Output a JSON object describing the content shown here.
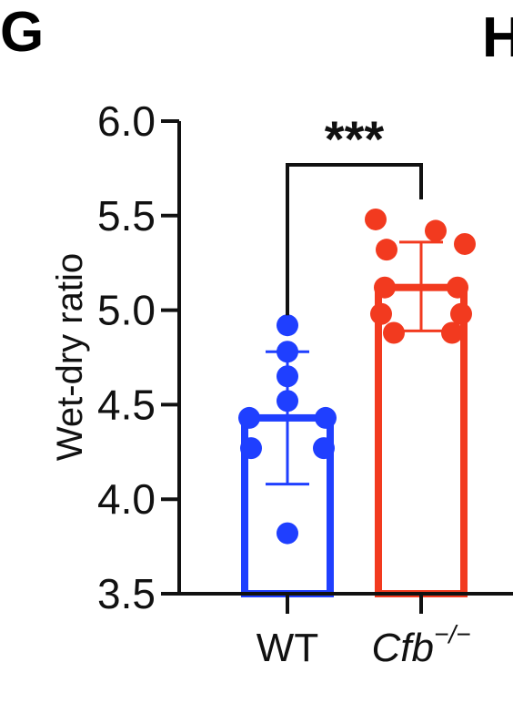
{
  "panels": {
    "left": "G",
    "right": "H"
  },
  "chart_data": {
    "type": "bar",
    "ylabel": "Wet-dry ratio",
    "ylim": [
      3.5,
      6.0
    ],
    "yticks": [
      "3.5",
      "4.0",
      "4.5",
      "5.0",
      "5.5",
      "6.0"
    ],
    "categories": [
      "WT",
      "Cfb"
    ],
    "category_superscript": [
      "",
      "−/−"
    ],
    "series": [
      {
        "mean": 4.43,
        "sd_low": 4.08,
        "sd_high": 4.78,
        "color": "#1f3fff",
        "points": [
          4.92,
          4.78,
          4.65,
          4.52,
          4.43,
          4.43,
          4.27,
          4.27,
          3.82
        ]
      },
      {
        "mean": 5.12,
        "sd_low": 4.89,
        "sd_high": 5.36,
        "color": "#f23a1f",
        "points": [
          5.48,
          5.42,
          5.35,
          5.32,
          5.12,
          5.12,
          4.98,
          4.98,
          4.88,
          4.88
        ]
      }
    ],
    "significance": "***",
    "grid": false,
    "legend": "none"
  }
}
